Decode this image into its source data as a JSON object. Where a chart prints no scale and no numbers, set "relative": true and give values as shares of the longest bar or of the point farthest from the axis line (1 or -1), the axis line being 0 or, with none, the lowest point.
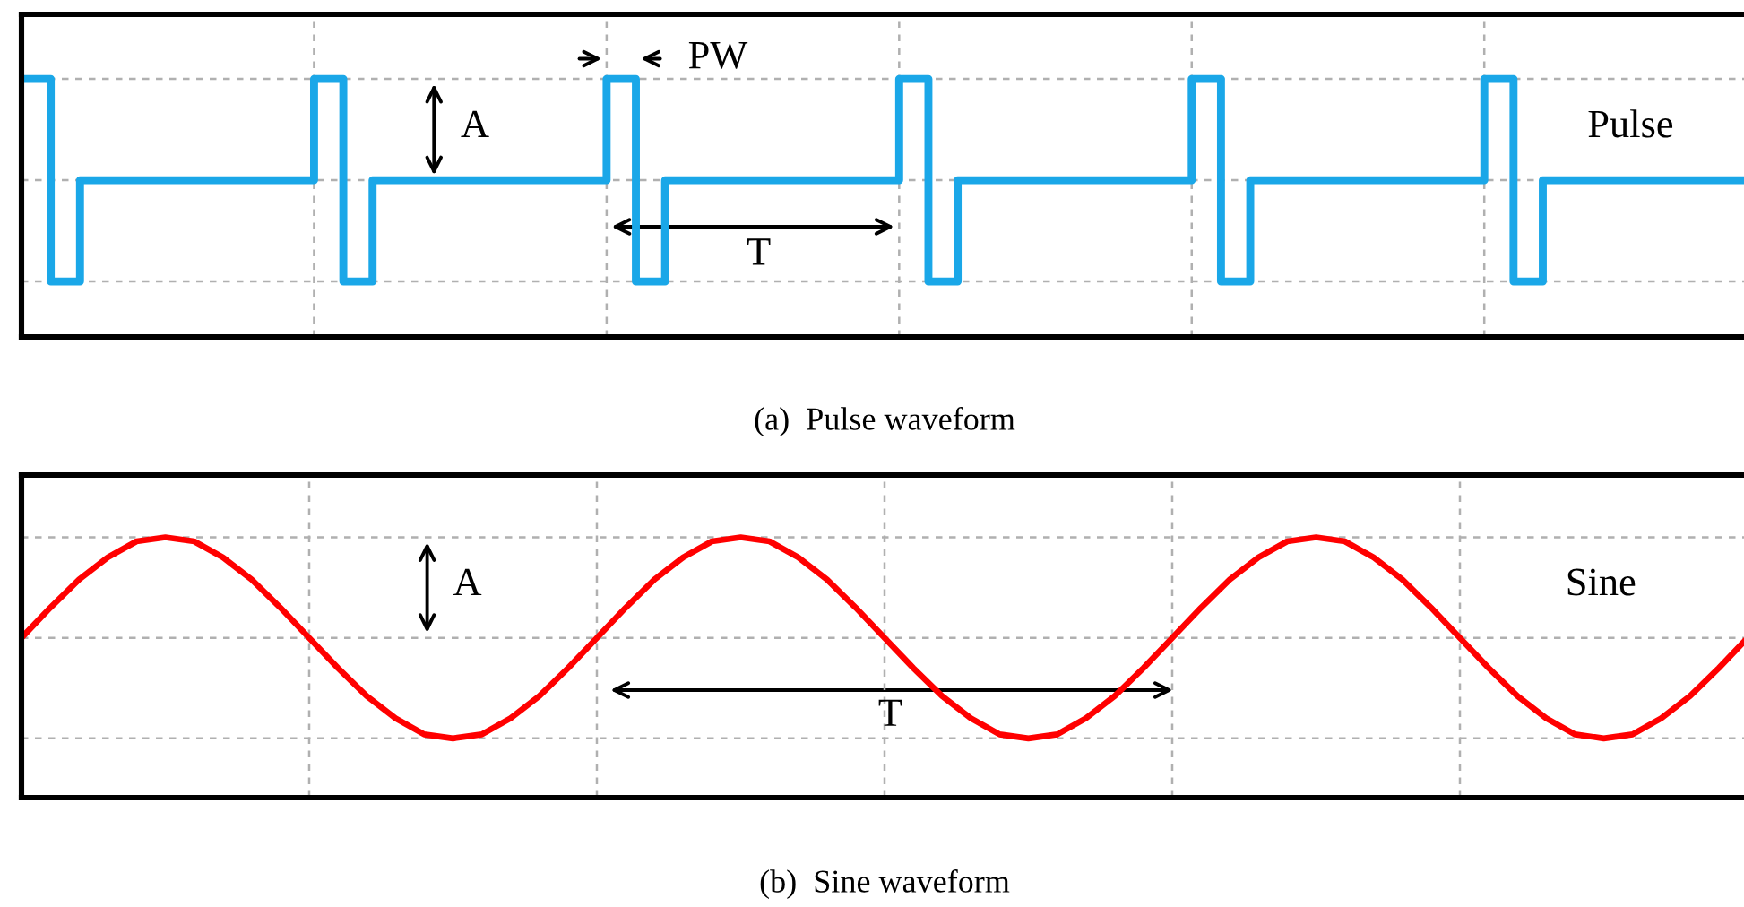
{
  "chart_data": [
    {
      "type": "step",
      "xlabel": "(a)  Pulse waveform",
      "relative": true,
      "grid": true,
      "tick_labels": false,
      "legend": false,
      "categories": [
        null,
        null,
        null,
        null,
        null,
        null,
        null,
        null,
        null,
        null,
        null,
        null,
        null,
        null,
        null,
        null,
        null,
        null,
        null,
        null,
        null,
        null,
        null,
        null,
        null,
        null,
        null,
        null,
        null,
        null,
        null,
        null,
        null,
        null,
        null,
        null,
        null,
        null,
        null,
        null,
        null,
        null,
        null,
        null,
        null,
        null,
        null,
        null,
        null,
        null,
        null,
        null,
        null,
        null,
        null,
        null,
        null,
        null,
        null,
        null
      ],
      "series": [
        {
          "name": "Pulse",
          "color": "#1aa7e8",
          "values": [
            1,
            0,
            0.5,
            0.5,
            0.5,
            0.5,
            0.5,
            0.5,
            0.5,
            0.5,
            1,
            0,
            0.5,
            0.5,
            0.5,
            0.5,
            0.5,
            0.5,
            0.5,
            0.5,
            1,
            0,
            0.5,
            0.5,
            0.5,
            0.5,
            0.5,
            0.5,
            0.5,
            0.5,
            1,
            0,
            0.5,
            0.5,
            0.5,
            0.5,
            0.5,
            0.5,
            0.5,
            0.5,
            1,
            0,
            0.5,
            0.5,
            0.5,
            0.5,
            0.5,
            0.5,
            0.5,
            0.5,
            1,
            0,
            0.5,
            0.5,
            0.5,
            0.5,
            0.5,
            0.5,
            0.5,
            0.5
          ]
        }
      ],
      "annotations": [
        "A",
        "PW",
        "T"
      ]
    },
    {
      "type": "line",
      "xlabel": "(b)  Sine waveform",
      "relative": true,
      "grid": true,
      "tick_labels": false,
      "legend": false,
      "categories": [
        null,
        null,
        null,
        null,
        null,
        null,
        null,
        null,
        null,
        null,
        null,
        null,
        null,
        null,
        null,
        null,
        null,
        null,
        null,
        null,
        null,
        null,
        null,
        null,
        null,
        null,
        null,
        null,
        null,
        null,
        null,
        null,
        null,
        null,
        null,
        null,
        null,
        null,
        null,
        null,
        null,
        null,
        null,
        null,
        null,
        null,
        null,
        null,
        null,
        null,
        null,
        null,
        null,
        null,
        null,
        null,
        null,
        null,
        null,
        null,
        null
      ],
      "series": [
        {
          "name": "Sine",
          "color": "#ff0000",
          "values": [
            0.5,
            0.65,
            0.79,
            0.9,
            0.98,
            1,
            0.98,
            0.9,
            0.79,
            0.65,
            0.5,
            0.35,
            0.21,
            0.1,
            0.02,
            0,
            0.02,
            0.1,
            0.21,
            0.35,
            0.5,
            0.65,
            0.79,
            0.9,
            0.98,
            1,
            0.98,
            0.9,
            0.79,
            0.65,
            0.5,
            0.35,
            0.21,
            0.1,
            0.02,
            0,
            0.02,
            0.1,
            0.21,
            0.35,
            0.5,
            0.65,
            0.79,
            0.9,
            0.98,
            1,
            0.98,
            0.9,
            0.79,
            0.65,
            0.5,
            0.35,
            0.21,
            0.1,
            0.02,
            0,
            0.02,
            0.1,
            0.21,
            0.35,
            0.5
          ]
        }
      ],
      "annotations": [
        "A",
        "T"
      ]
    }
  ]
}
